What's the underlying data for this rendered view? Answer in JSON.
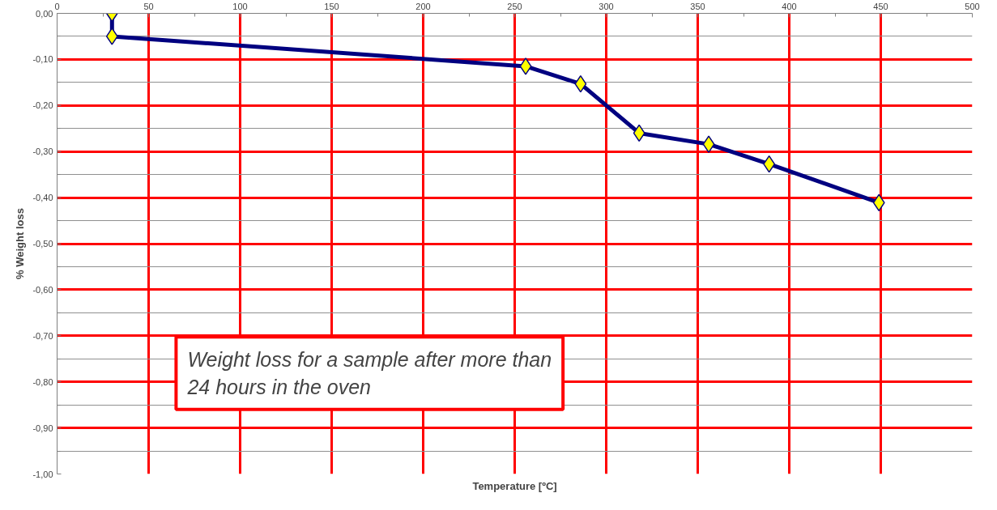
{
  "chart_data": {
    "type": "line",
    "xlabel": "Temperature [ºC]",
    "ylabel": "% Weight loss",
    "x": [
      30,
      30,
      256,
      286,
      318,
      356,
      389,
      449
    ],
    "series": [
      {
        "color": "#000080",
        "values": [
          0,
          -0.05,
          -0.115,
          -0.153,
          -0.26,
          -0.284,
          -0.327,
          -0.411
        ]
      }
    ],
    "marker": "diamond",
    "line_style": "solid",
    "grid": true,
    "xlim": [
      0,
      500
    ],
    "xticks": [
      0,
      {
        "value": 25,
        "label": null
      },
      50,
      {
        "value": 75,
        "label": null
      },
      100,
      {
        "value": 125,
        "label": null
      },
      150,
      {
        "value": 175,
        "label": null
      },
      200,
      {
        "value": 225,
        "label": null
      },
      250,
      {
        "value": 275,
        "label": null
      },
      300,
      {
        "value": 325,
        "label": null
      },
      350,
      {
        "value": 375,
        "label": null
      },
      400,
      {
        "value": 425,
        "label": null
      },
      450,
      {
        "value": 475,
        "label": null
      },
      500
    ],
    "ylim": [
      -1,
      0
    ],
    "yticks": [
      {
        "value": 0,
        "label": "0,00"
      },
      {
        "value": -0.05,
        "label": null
      },
      {
        "value": -0.1,
        "label": "-0,10"
      },
      {
        "value": -0.15,
        "label": null
      },
      {
        "value": -0.2,
        "label": "-0,20"
      },
      {
        "value": -0.25,
        "label": null
      },
      {
        "value": -0.3,
        "label": "-0,30"
      },
      {
        "value": -0.35,
        "label": null
      },
      {
        "value": -0.4,
        "label": "-0,40"
      },
      {
        "value": -0.45,
        "label": null
      },
      {
        "value": -0.5,
        "label": "-0,50"
      },
      {
        "value": -0.55,
        "label": null
      },
      {
        "value": -0.6,
        "label": "-0,60"
      },
      {
        "value": -0.65,
        "label": null
      },
      {
        "value": -0.7,
        "label": "-0,70"
      },
      {
        "value": -0.75,
        "label": null
      },
      {
        "value": -0.8,
        "label": "-0,80"
      },
      {
        "value": -0.85,
        "label": null
      },
      {
        "value": -0.9,
        "label": "-0,90"
      },
      {
        "value": -0.95,
        "label": null
      },
      {
        "value": -1,
        "label": "-1,00"
      }
    ],
    "annotations": [
      "Weight loss for a sample after more than\n24 hours in the oven"
    ]
  }
}
